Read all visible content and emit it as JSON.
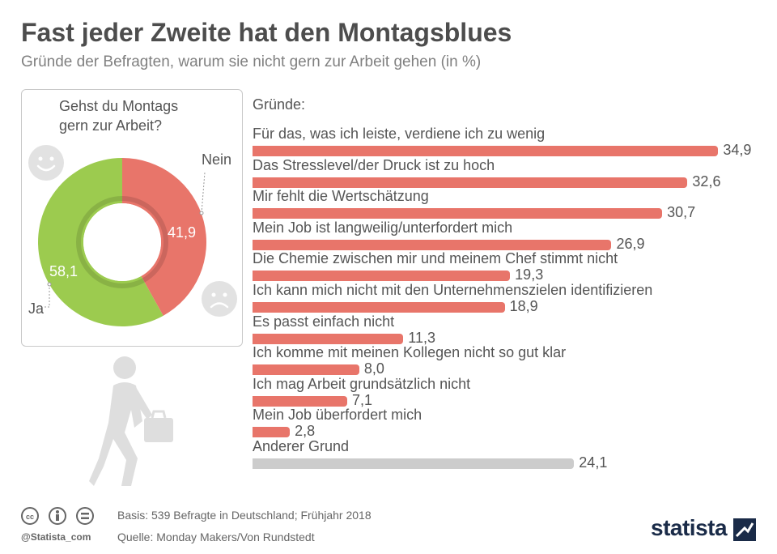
{
  "header": {
    "title": "Fast jeder Zweite hat den Montagsblues",
    "subtitle": "Gründe der Befragten, warum sie nicht gern zur Arbeit gehen (in %)"
  },
  "donut": {
    "question_line1": "Gehst du Montags",
    "question_line2": "gern zur Arbeit?",
    "ja_label": "Ja",
    "nein_label": "Nein",
    "ja_value_text": "58,1",
    "nein_value_text": "41,9",
    "icons": [
      "smiley-happy-icon",
      "smiley-sad-icon"
    ]
  },
  "reasons_heading": "Gründe:",
  "chart_data": [
    {
      "type": "pie",
      "title": "Gehst du Montags gern zur Arbeit?",
      "categories": [
        "Nein",
        "Ja"
      ],
      "values": [
        41.9,
        58.1
      ],
      "colors": [
        "#e8756a",
        "#9ccb4f"
      ],
      "variant": "donut"
    },
    {
      "type": "bar",
      "orientation": "horizontal",
      "title": "Gründe:",
      "categories": [
        "Für das, was ich leiste, verdiene ich zu wenig",
        "Das Stresslevel/der Druck ist zu hoch",
        "Mir fehlt die Wertschätzung",
        "Mein Job ist langweilig/unterfordert mich",
        "Die Chemie zwischen mir und meinem Chef stimmt nicht",
        "Ich kann mich nicht mit den Unternehmenszielen identifizieren",
        "Es passt einfach nicht",
        "Ich komme mit meinen Kollegen nicht so gut klar",
        "Ich mag Arbeit grundsätzlich nicht",
        "Mein Job überfordert mich",
        "Anderer Grund"
      ],
      "values": [
        34.9,
        32.6,
        30.7,
        26.9,
        19.3,
        18.9,
        11.3,
        8.0,
        7.1,
        2.8,
        24.1
      ],
      "value_labels": [
        "34,9",
        "32,6",
        "30,7",
        "26,9",
        "19,3",
        "18,9",
        "11,3",
        "8,0",
        "7,1",
        "2,8",
        "24,1"
      ],
      "colors": [
        "#e8756a",
        "#e8756a",
        "#e8756a",
        "#e8756a",
        "#e8756a",
        "#e8756a",
        "#e8756a",
        "#e8756a",
        "#e8756a",
        "#e8756a",
        "#cccccc"
      ],
      "xlim": [
        0,
        35
      ]
    }
  ],
  "footer": {
    "handle": "@Statista_com",
    "basis": "Basis: 539 Befragte in Deutschland; Frühjahr 2018",
    "quelle": "Quelle: Monday Makers/Von Rundstedt",
    "logo": "statista",
    "license_icons": [
      "cc-icon",
      "attribution-icon",
      "no-derivatives-icon"
    ]
  },
  "colors": {
    "accent_red": "#e8756a",
    "accent_green": "#9ccb4f",
    "other_grey": "#cccccc",
    "logo_navy": "#1a2b48"
  }
}
